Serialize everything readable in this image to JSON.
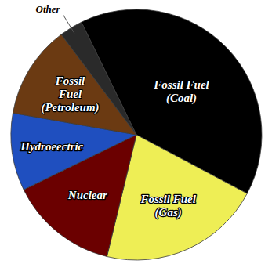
{
  "chart_data": {
    "type": "pie",
    "categories": [
      "Fossil Fuel (Coal)",
      "Fossil Fuel (Gas)",
      "Nuclear",
      "Hydroeectric",
      "Fossil Fuel (Petroleum)",
      "Other"
    ],
    "values": [
      40,
      21,
      14,
      10,
      12,
      3
    ],
    "colors": [
      "#000000",
      "#eeee55",
      "#6b0000",
      "#1f4fbf",
      "#6b3a12",
      "#2a2a2a"
    ]
  }
}
